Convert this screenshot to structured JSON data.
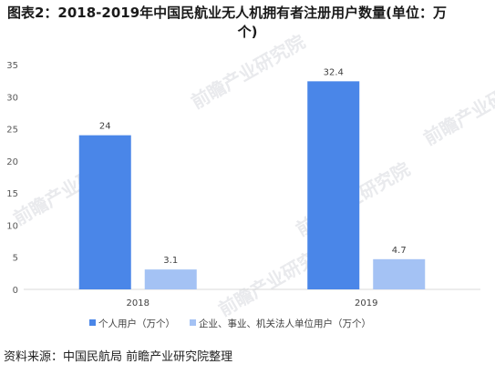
{
  "title": {
    "line1": "图表2：2018-2019年中国民航业无人机拥有者注册用户数量(单位：万",
    "line2": "个)"
  },
  "chart_data": {
    "type": "bar",
    "categories": [
      "2018",
      "2019"
    ],
    "series": [
      {
        "name": "个人用户（万个）",
        "values": [
          24,
          32.4
        ],
        "color": "#4a86e8"
      },
      {
        "name": "企业、事业、机关法人单位用户（万个）",
        "values": [
          3.1,
          4.7
        ],
        "color": "#a4c2f4"
      }
    ],
    "data_labels": [
      [
        "24",
        "32.4"
      ],
      [
        "3.1",
        "4.7"
      ]
    ],
    "ylim": [
      0,
      35
    ],
    "yticks": [
      0,
      5,
      10,
      15,
      20,
      25,
      30,
      35
    ],
    "grid": false,
    "legend": "bottom"
  },
  "watermark": "前瞻产业研究院",
  "source": "资料来源：中国民航局 前瞻产业研究院整理"
}
